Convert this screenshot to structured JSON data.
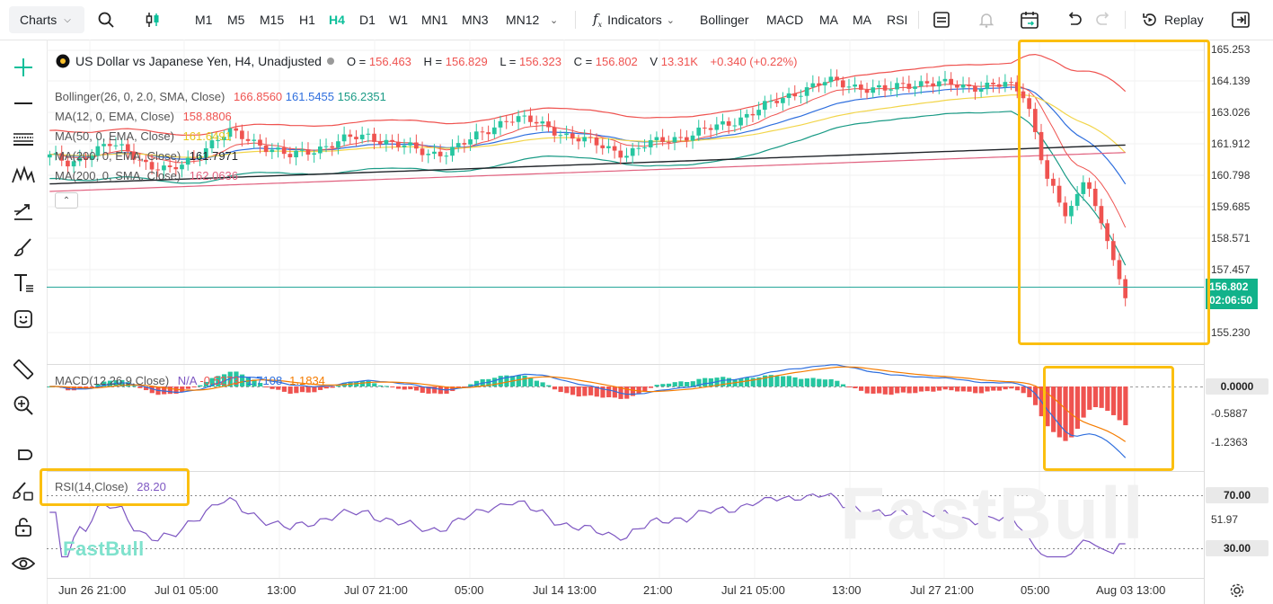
{
  "toolbar": {
    "charts_label": "Charts",
    "timeframes": [
      "M1",
      "M5",
      "M15",
      "H1",
      "H4",
      "D1",
      "W1",
      "MN1",
      "MN3",
      "MN12"
    ],
    "active_timeframe": "H4",
    "indicators_label": "Indicators",
    "quick_indicators": [
      "Bollinger",
      "MACD",
      "MA",
      "MA",
      "RSI"
    ],
    "replay_label": "Replay"
  },
  "symbol": {
    "title": "US Dollar vs Japanese Yen, H4, Unadjusted",
    "o_label": "O =",
    "o_value": "156.463",
    "h_label": "H =",
    "h_value": "156.829",
    "l_label": "L =",
    "l_value": "156.323",
    "c_label": "C =",
    "c_value": "156.802",
    "v_label": "V",
    "v_value": "13.31K",
    "change": "+0.340 (+0.22%)"
  },
  "indicators": {
    "bollinger": {
      "name": "Bollinger(26, 0, 2.0, SMA, Close)",
      "upper": "166.8560",
      "middle": "161.5455",
      "lower": "156.2351"
    },
    "ma12": {
      "name": "MA(12, 0, EMA, Close)",
      "value": "158.8806"
    },
    "ma50": {
      "name": "MA(50, 0, EMA, Close)",
      "value": "161.6491"
    },
    "ma200e": {
      "name": "MA(200, 0, EMA, Close)",
      "value": "161.7971"
    },
    "ma200s": {
      "name": "MA(200, 0, SMA, Close)",
      "value": "162.0636"
    },
    "macd": {
      "name": "MACD(12,26,9,Close)",
      "na": "N/A",
      "v1": "-0.5273",
      "v2": "-1.7108",
      "v3": "-1.1834"
    },
    "rsi": {
      "name": "RSI(14,Close)",
      "value": "28.20"
    }
  },
  "price_axis": [
    "165.253",
    "164.139",
    "163.026",
    "161.912",
    "160.798",
    "159.685",
    "158.571",
    "157.457",
    "155.230"
  ],
  "current_price": {
    "price": "156.802",
    "countdown": "02:06:50"
  },
  "macd_axis": {
    "zero": "0.0000",
    "a": "-0.5887",
    "b": "-1.2363"
  },
  "rsi_axis": {
    "upper": "70.00",
    "mid": "51.97",
    "lower": "30.00"
  },
  "time_axis": [
    "Jun 26 21:00",
    "Jul 01 05:00",
    "13:00",
    "Jul 07 21:00",
    "05:00",
    "Jul 14 13:00",
    "21:00",
    "Jul 21 05:00",
    "13:00",
    "Jul 27 21:00",
    "05:00",
    "Aug 03 13:00"
  ],
  "branding": {
    "logo": "FastBull",
    "watermark": "FastBull"
  },
  "colors": {
    "accent": "#0bbf9a",
    "up": "#26c6a0",
    "down": "#ef5350",
    "highlight": "#fbbf10"
  },
  "chart_data": {
    "type": "candlestick",
    "title": "US Dollar vs Japanese Yen, H4, Unadjusted",
    "y_range": [
      155.0,
      165.4
    ],
    "close_series": [
      161.5,
      161.3,
      161.6,
      161.9,
      161.7,
      161.2,
      161.0,
      161.4,
      161.9,
      162.3,
      162.1,
      161.8,
      161.5,
      161.7,
      161.9,
      162.1,
      162.2,
      162.0,
      161.8,
      161.6,
      161.7,
      162.0,
      162.4,
      162.8,
      162.7,
      162.5,
      162.2,
      162.0,
      161.8,
      161.6,
      161.9,
      162.1,
      162.2,
      162.4,
      162.6,
      162.9,
      163.2,
      163.5,
      163.8,
      164.0,
      163.9,
      163.8,
      163.7,
      163.9,
      164.0,
      163.9,
      163.8,
      163.9,
      163.9,
      163.5,
      161.0,
      159.5,
      160.8,
      158.9,
      156.8
    ],
    "macd_hist_tail": [
      -0.2,
      -0.4,
      -0.6,
      -0.8,
      -1.0,
      -1.1,
      -1.2
    ],
    "rsi_levels": [
      70,
      30
    ],
    "rsi_last": 28.2
  }
}
